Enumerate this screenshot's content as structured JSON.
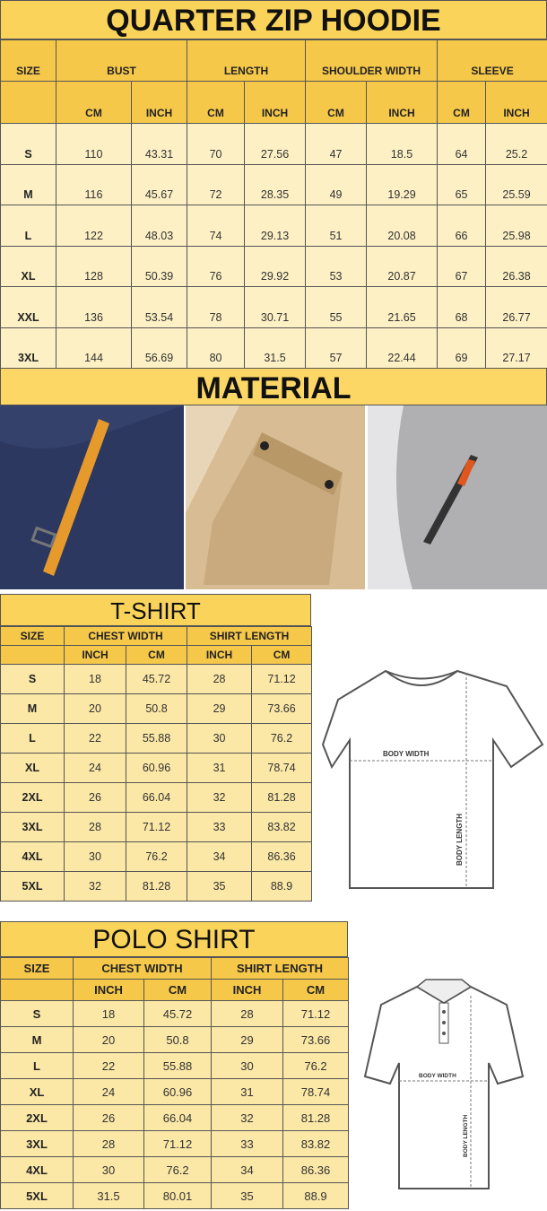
{
  "hoodie": {
    "title": "QUARTER ZIP HOODIE",
    "headers": [
      "SIZE",
      "BUST",
      "LENGTH",
      "SHOULDER WIDTH",
      "SLEEVE"
    ],
    "units": [
      "CM",
      "INCH",
      "CM",
      "INCH",
      "CM",
      "INCH",
      "CM",
      "INCH"
    ],
    "rows": [
      [
        "S",
        "110",
        "43.31",
        "70",
        "27.56",
        "47",
        "18.5",
        "64",
        "25.2"
      ],
      [
        "M",
        "116",
        "45.67",
        "72",
        "28.35",
        "49",
        "19.29",
        "65",
        "25.59"
      ],
      [
        "L",
        "122",
        "48.03",
        "74",
        "29.13",
        "51",
        "20.08",
        "66",
        "25.98"
      ],
      [
        "XL",
        "128",
        "50.39",
        "76",
        "29.92",
        "53",
        "20.87",
        "67",
        "26.38"
      ],
      [
        "XXL",
        "136",
        "53.54",
        "78",
        "30.71",
        "55",
        "21.65",
        "68",
        "26.77"
      ],
      [
        "3XL",
        "144",
        "56.69",
        "80",
        "31.5",
        "57",
        "22.44",
        "69",
        "27.17"
      ]
    ]
  },
  "material": {
    "title": "MATERIAL",
    "colors": {
      "navy": "#34416a",
      "tan": "#d2b48c",
      "gray": "#a9a9ab",
      "accent": "#e59a2b"
    }
  },
  "tshirt": {
    "title": "T-SHIRT",
    "headers": [
      "SIZE",
      "CHEST WIDTH",
      "SHIRT LENGTH"
    ],
    "units": [
      "INCH",
      "CM",
      "INCH",
      "CM"
    ],
    "rows": [
      [
        "S",
        "18",
        "45.72",
        "28",
        "71.12"
      ],
      [
        "M",
        "20",
        "50.8",
        "29",
        "73.66"
      ],
      [
        "L",
        "22",
        "55.88",
        "30",
        "76.2"
      ],
      [
        "XL",
        "24",
        "60.96",
        "31",
        "78.74"
      ],
      [
        "2XL",
        "26",
        "66.04",
        "32",
        "81.28"
      ],
      [
        "3XL",
        "28",
        "71.12",
        "33",
        "83.82"
      ],
      [
        "4XL",
        "30",
        "76.2",
        "34",
        "86.36"
      ],
      [
        "5XL",
        "32",
        "81.28",
        "35",
        "88.9"
      ]
    ],
    "diagram": {
      "width_label": "BODY WIDTH",
      "length_label": "BODY LENGTH"
    }
  },
  "polo": {
    "title": "POLO SHIRT",
    "headers": [
      "SIZE",
      "CHEST WIDTH",
      "SHIRT LENGTH"
    ],
    "units": [
      "INCH",
      "CM",
      "INCH",
      "CM"
    ],
    "rows": [
      [
        "S",
        "18",
        "45.72",
        "28",
        "71.12"
      ],
      [
        "M",
        "20",
        "50.8",
        "29",
        "73.66"
      ],
      [
        "L",
        "22",
        "55.88",
        "30",
        "76.2"
      ],
      [
        "XL",
        "24",
        "60.96",
        "31",
        "78.74"
      ],
      [
        "2XL",
        "26",
        "66.04",
        "32",
        "81.28"
      ],
      [
        "3XL",
        "28",
        "71.12",
        "33",
        "83.82"
      ],
      [
        "4XL",
        "30",
        "76.2",
        "34",
        "86.36"
      ],
      [
        "5XL",
        "31.5",
        "80.01",
        "35",
        "88.9"
      ]
    ],
    "diagram": {
      "width_label": "BODY WIDTH",
      "length_label": "BODY LENGTH"
    }
  }
}
